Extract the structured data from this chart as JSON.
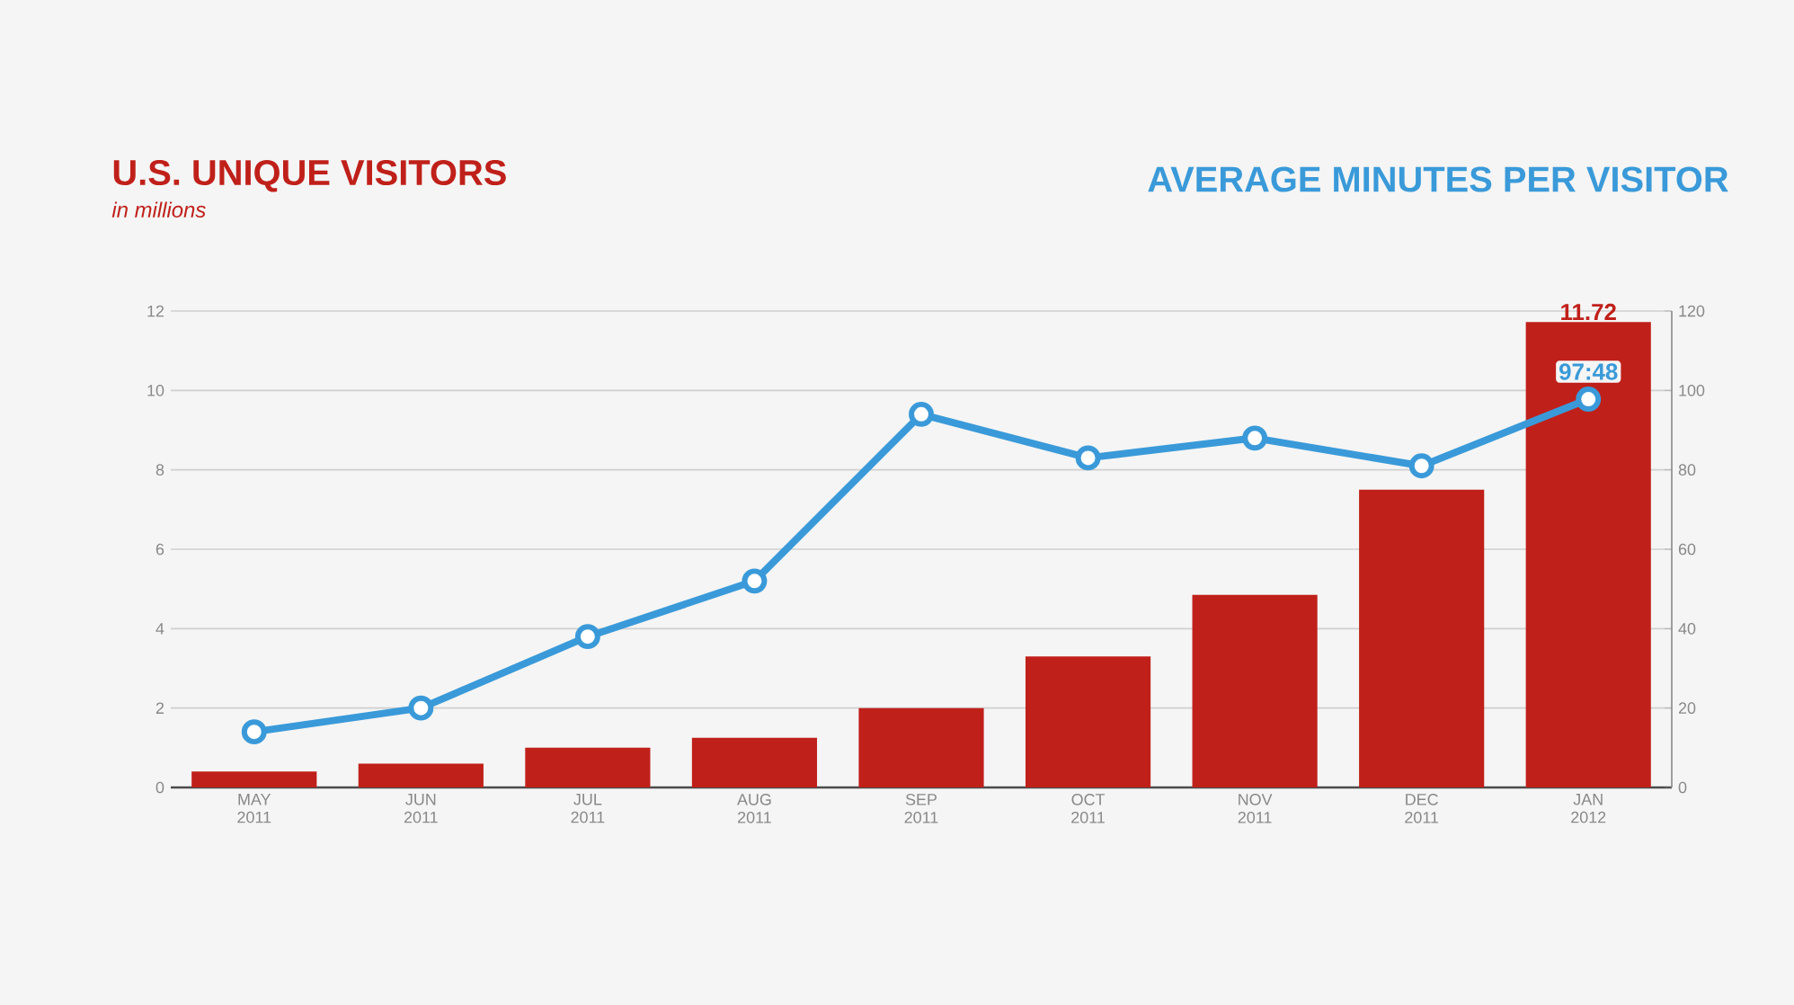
{
  "chart_data": {
    "type": "bar",
    "ylabel": "U.S. UNIQUE VISITORS",
    "subtitle": "in millions",
    "y2label": "AVERAGE MINUTES PER VISITOR",
    "categories": [
      "MAY 2011",
      "JUN 2011",
      "JUL 2011",
      "AUG 2011",
      "SEP 2011",
      "OCT 2011",
      "NOV 2011",
      "DEC 2011",
      "JAN 2012"
    ],
    "series": [
      {
        "color": "#c0201a",
        "values": [
          0.4,
          0.6,
          1.0,
          1.25,
          2.0,
          3.3,
          4.85,
          7.5,
          11.72
        ],
        "value_labels": [
          null,
          null,
          null,
          null,
          null,
          null,
          null,
          null,
          "11.72"
        ]
      },
      {
        "type": "line",
        "axis": "y2",
        "color": "#3a9ad9",
        "marker": "circle",
        "values": [
          14,
          20,
          38,
          52,
          94,
          83,
          88,
          81,
          97.8
        ],
        "value_labels": [
          null,
          null,
          null,
          null,
          null,
          null,
          null,
          null,
          "97:48"
        ]
      }
    ],
    "ylim": [
      0,
      12
    ],
    "yticks": [
      0,
      2,
      4,
      6,
      8,
      10,
      12
    ],
    "y2lim": [
      0,
      120
    ],
    "y2ticks": [
      0,
      20,
      40,
      60,
      80,
      100,
      120
    ],
    "grid": "y"
  }
}
